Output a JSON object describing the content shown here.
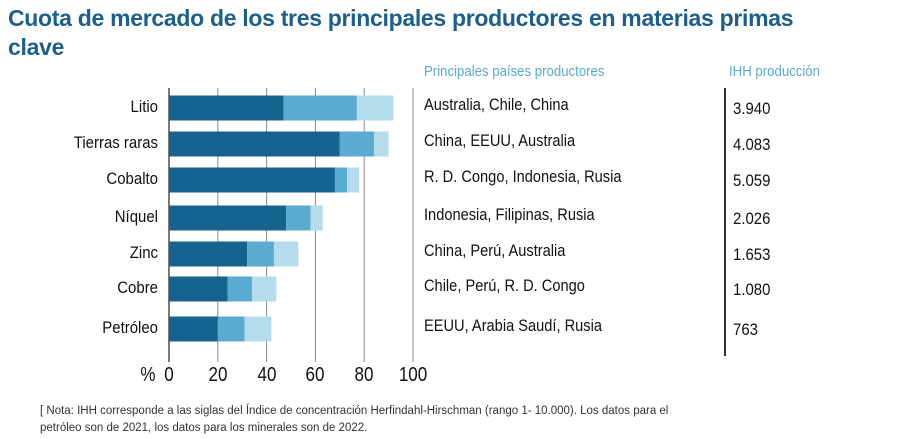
{
  "chart_data": {
    "type": "bar",
    "orientation": "horizontal",
    "stacked": true,
    "title": "Cuota de mercado de los tres principales productores en materias primas clave",
    "categories": [
      "Litio",
      "Tierras raras",
      "Cobalto",
      "Níquel",
      "Zinc",
      "Cobre",
      "Petróleo"
    ],
    "series": [
      {
        "values": [
          47,
          70,
          68,
          48,
          32,
          24,
          20
        ],
        "color": "#17638f"
      },
      {
        "values": [
          30,
          14,
          5,
          10,
          11,
          10,
          11
        ],
        "color": "#5aabcf"
      },
      {
        "values": [
          15,
          6,
          5,
          5,
          10,
          10,
          11
        ],
        "color": "#b5dcec"
      }
    ],
    "xlabel": "%",
    "xlim": [
      0,
      100
    ],
    "xticks": [
      "0",
      "20",
      "40",
      "60",
      "80",
      "100"
    ],
    "grid": true,
    "columns": {
      "countries_header": "Principales países productores",
      "ihh_header": "IHH producción",
      "countries": [
        "Australia, Chile, China",
        "China, EEUU, Australia",
        "R. D. Congo, Indonesia, Rusia",
        "Indonesia, Filipinas, Rusia",
        "China, Perú, Australia",
        "Chile, Perú, R. D. Congo",
        "EEUU, Arabia Saudí, Rusia"
      ],
      "ihh": [
        "3.940",
        "4.083",
        "5.059",
        "2.026",
        "1.653",
        "1.080",
        "763"
      ]
    },
    "note": "[ Nota: IHH corresponde a las siglas del Índice de concentración Herfindahl-Hirschman (rango 1- 10.000). Los datos para el petróleo son de 2021, los datos para los minerales son de 2022."
  },
  "colors": {
    "title": "#1b5f8c",
    "header": "#5aabcf"
  }
}
